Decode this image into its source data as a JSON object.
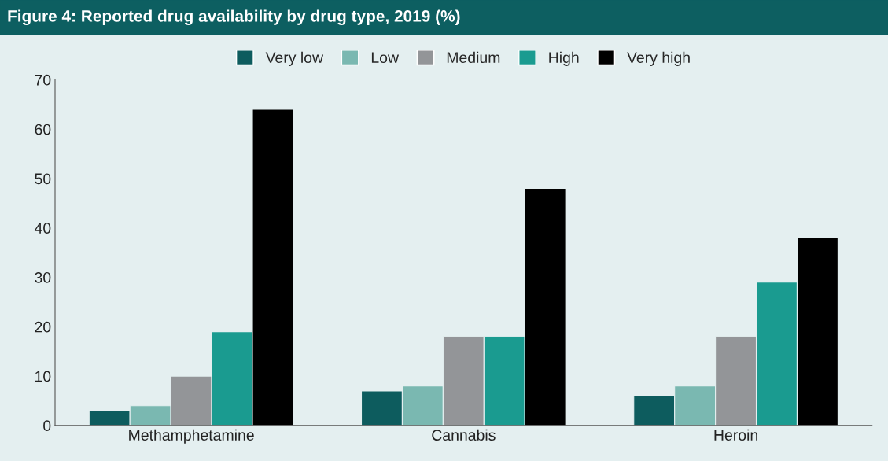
{
  "chart_data": {
    "type": "bar",
    "title": "Figure 4: Reported drug availability by drug type, 2019 (%)",
    "categories": [
      "Methamphetamine",
      "Cannabis",
      "Heroin"
    ],
    "series": [
      {
        "name": "Very low",
        "color": "#0d5c5e",
        "values": [
          3,
          7,
          6
        ]
      },
      {
        "name": "Low",
        "color": "#7ab8b1",
        "values": [
          4,
          8,
          8
        ]
      },
      {
        "name": "Medium",
        "color": "#939598",
        "values": [
          10,
          18,
          18
        ]
      },
      {
        "name": "High",
        "color": "#1a9b90",
        "values": [
          19,
          18,
          29
        ]
      },
      {
        "name": "Very high",
        "color": "#000000",
        "values": [
          64,
          48,
          38
        ]
      }
    ],
    "ylim": [
      0,
      70
    ],
    "yticks": [
      0,
      10,
      20,
      30,
      40,
      50,
      60,
      70
    ],
    "grid": false,
    "legend": "top"
  }
}
